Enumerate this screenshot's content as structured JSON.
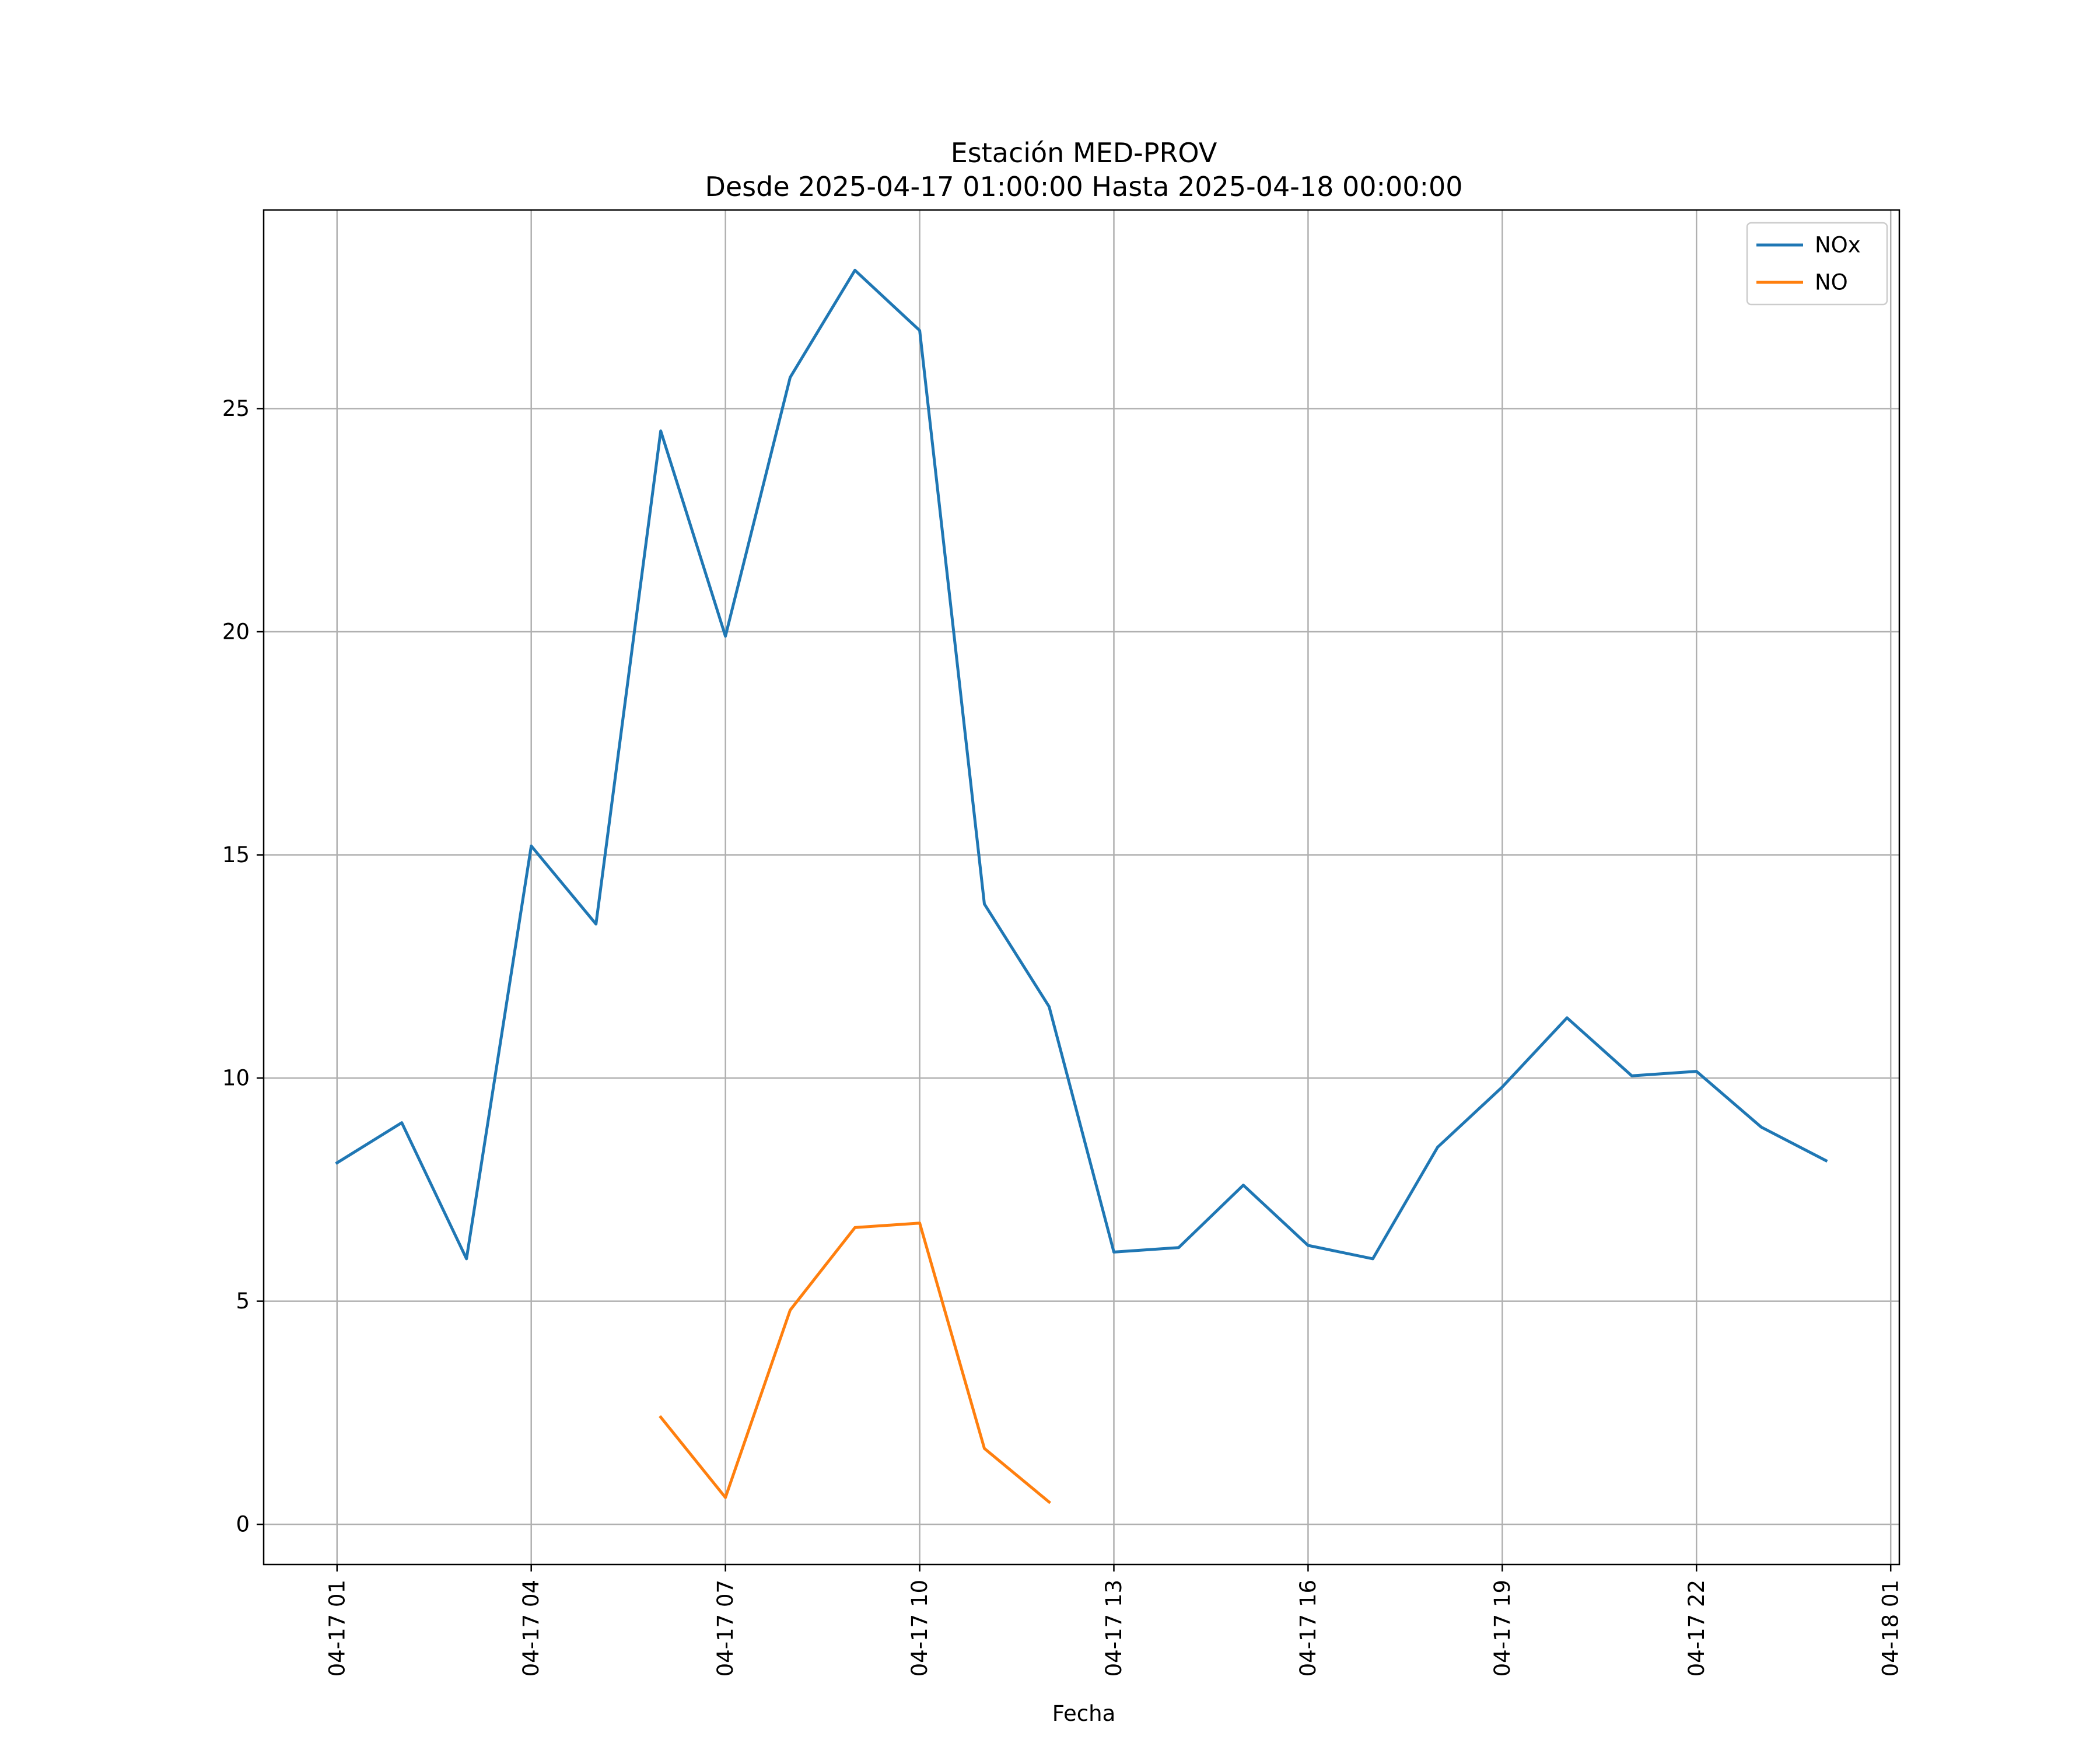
{
  "chart_data": {
    "type": "line",
    "title": "Estación MED-PROV",
    "subtitle": "Desde 2025-04-17 01:00:00 Hasta 2025-04-18 00:00:00",
    "xlabel": "Fecha",
    "ylabel": "",
    "x": [
      "2025-04-17 01:00",
      "2025-04-17 02:00",
      "2025-04-17 03:00",
      "2025-04-17 04:00",
      "2025-04-17 05:00",
      "2025-04-17 06:00",
      "2025-04-17 07:00",
      "2025-04-17 08:00",
      "2025-04-17 09:00",
      "2025-04-17 10:00",
      "2025-04-17 11:00",
      "2025-04-17 12:00",
      "2025-04-17 13:00",
      "2025-04-17 14:00",
      "2025-04-17 15:00",
      "2025-04-17 16:00",
      "2025-04-17 17:00",
      "2025-04-17 18:00",
      "2025-04-17 19:00",
      "2025-04-17 20:00",
      "2025-04-17 21:00",
      "2025-04-17 22:00",
      "2025-04-17 23:00",
      "2025-04-18 00:00"
    ],
    "xlim": [
      "2025-04-16 23:52",
      "2025-04-18 01:08"
    ],
    "x_ticks": [
      {
        "value": "2025-04-17 01:00",
        "label": "04-17 01"
      },
      {
        "value": "2025-04-17 04:00",
        "label": "04-17 04"
      },
      {
        "value": "2025-04-17 07:00",
        "label": "04-17 07"
      },
      {
        "value": "2025-04-17 10:00",
        "label": "04-17 10"
      },
      {
        "value": "2025-04-17 13:00",
        "label": "04-17 13"
      },
      {
        "value": "2025-04-17 16:00",
        "label": "04-17 16"
      },
      {
        "value": "2025-04-17 19:00",
        "label": "04-17 19"
      },
      {
        "value": "2025-04-17 22:00",
        "label": "04-17 22"
      },
      {
        "value": "2025-04-18 01:00",
        "label": "04-18 01"
      }
    ],
    "ylim": [
      -0.9,
      29.45
    ],
    "y_ticks": [
      {
        "value": 0,
        "label": "0"
      },
      {
        "value": 5,
        "label": "5"
      },
      {
        "value": 10,
        "label": "10"
      },
      {
        "value": 15,
        "label": "15"
      },
      {
        "value": 20,
        "label": "20"
      },
      {
        "value": 25,
        "label": "25"
      }
    ],
    "grid": true,
    "legend_position": "top-right",
    "series": [
      {
        "name": "NOx",
        "color": "#1f77b4",
        "values": [
          8.1,
          9.0,
          5.95,
          15.2,
          13.45,
          24.5,
          19.9,
          25.7,
          28.1,
          26.75,
          13.9,
          11.6,
          6.1,
          6.2,
          7.6,
          6.25,
          5.95,
          8.45,
          9.8,
          11.35,
          10.05,
          10.15,
          8.9,
          8.15
        ]
      },
      {
        "name": "NO",
        "color": "#ff7f0e",
        "values": [
          null,
          null,
          null,
          null,
          null,
          2.4,
          0.6,
          4.8,
          6.65,
          6.75,
          1.7,
          0.5,
          null,
          null,
          null,
          null,
          null,
          null,
          null,
          null,
          null,
          null,
          null,
          null
        ]
      }
    ]
  }
}
